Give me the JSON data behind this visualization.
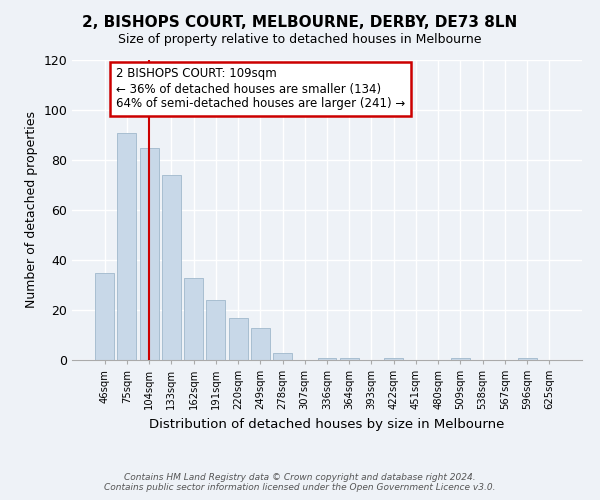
{
  "title": "2, BISHOPS COURT, MELBOURNE, DERBY, DE73 8LN",
  "subtitle": "Size of property relative to detached houses in Melbourne",
  "xlabel": "Distribution of detached houses by size in Melbourne",
  "ylabel": "Number of detached properties",
  "categories": [
    "46sqm",
    "75sqm",
    "104sqm",
    "133sqm",
    "162sqm",
    "191sqm",
    "220sqm",
    "249sqm",
    "278sqm",
    "307sqm",
    "336sqm",
    "364sqm",
    "393sqm",
    "422sqm",
    "451sqm",
    "480sqm",
    "509sqm",
    "538sqm",
    "567sqm",
    "596sqm",
    "625sqm"
  ],
  "values": [
    35,
    91,
    85,
    74,
    33,
    24,
    17,
    13,
    3,
    0,
    1,
    1,
    0,
    1,
    0,
    0,
    1,
    0,
    0,
    1,
    0
  ],
  "bar_color": "#c8d8e8",
  "bar_edge_color": "#a0b8cc",
  "vline_x_index": 2,
  "vline_color": "#cc0000",
  "annotation_title": "2 BISHOPS COURT: 109sqm",
  "annotation_line1": "← 36% of detached houses are smaller (134)",
  "annotation_line2": "64% of semi-detached houses are larger (241) →",
  "annotation_box_color": "#ffffff",
  "annotation_box_edge": "#cc0000",
  "ylim": [
    0,
    120
  ],
  "yticks": [
    0,
    20,
    40,
    60,
    80,
    100,
    120
  ],
  "footer_line1": "Contains HM Land Registry data © Crown copyright and database right 2024.",
  "footer_line2": "Contains public sector information licensed under the Open Government Licence v3.0.",
  "bg_color": "#eef2f7"
}
